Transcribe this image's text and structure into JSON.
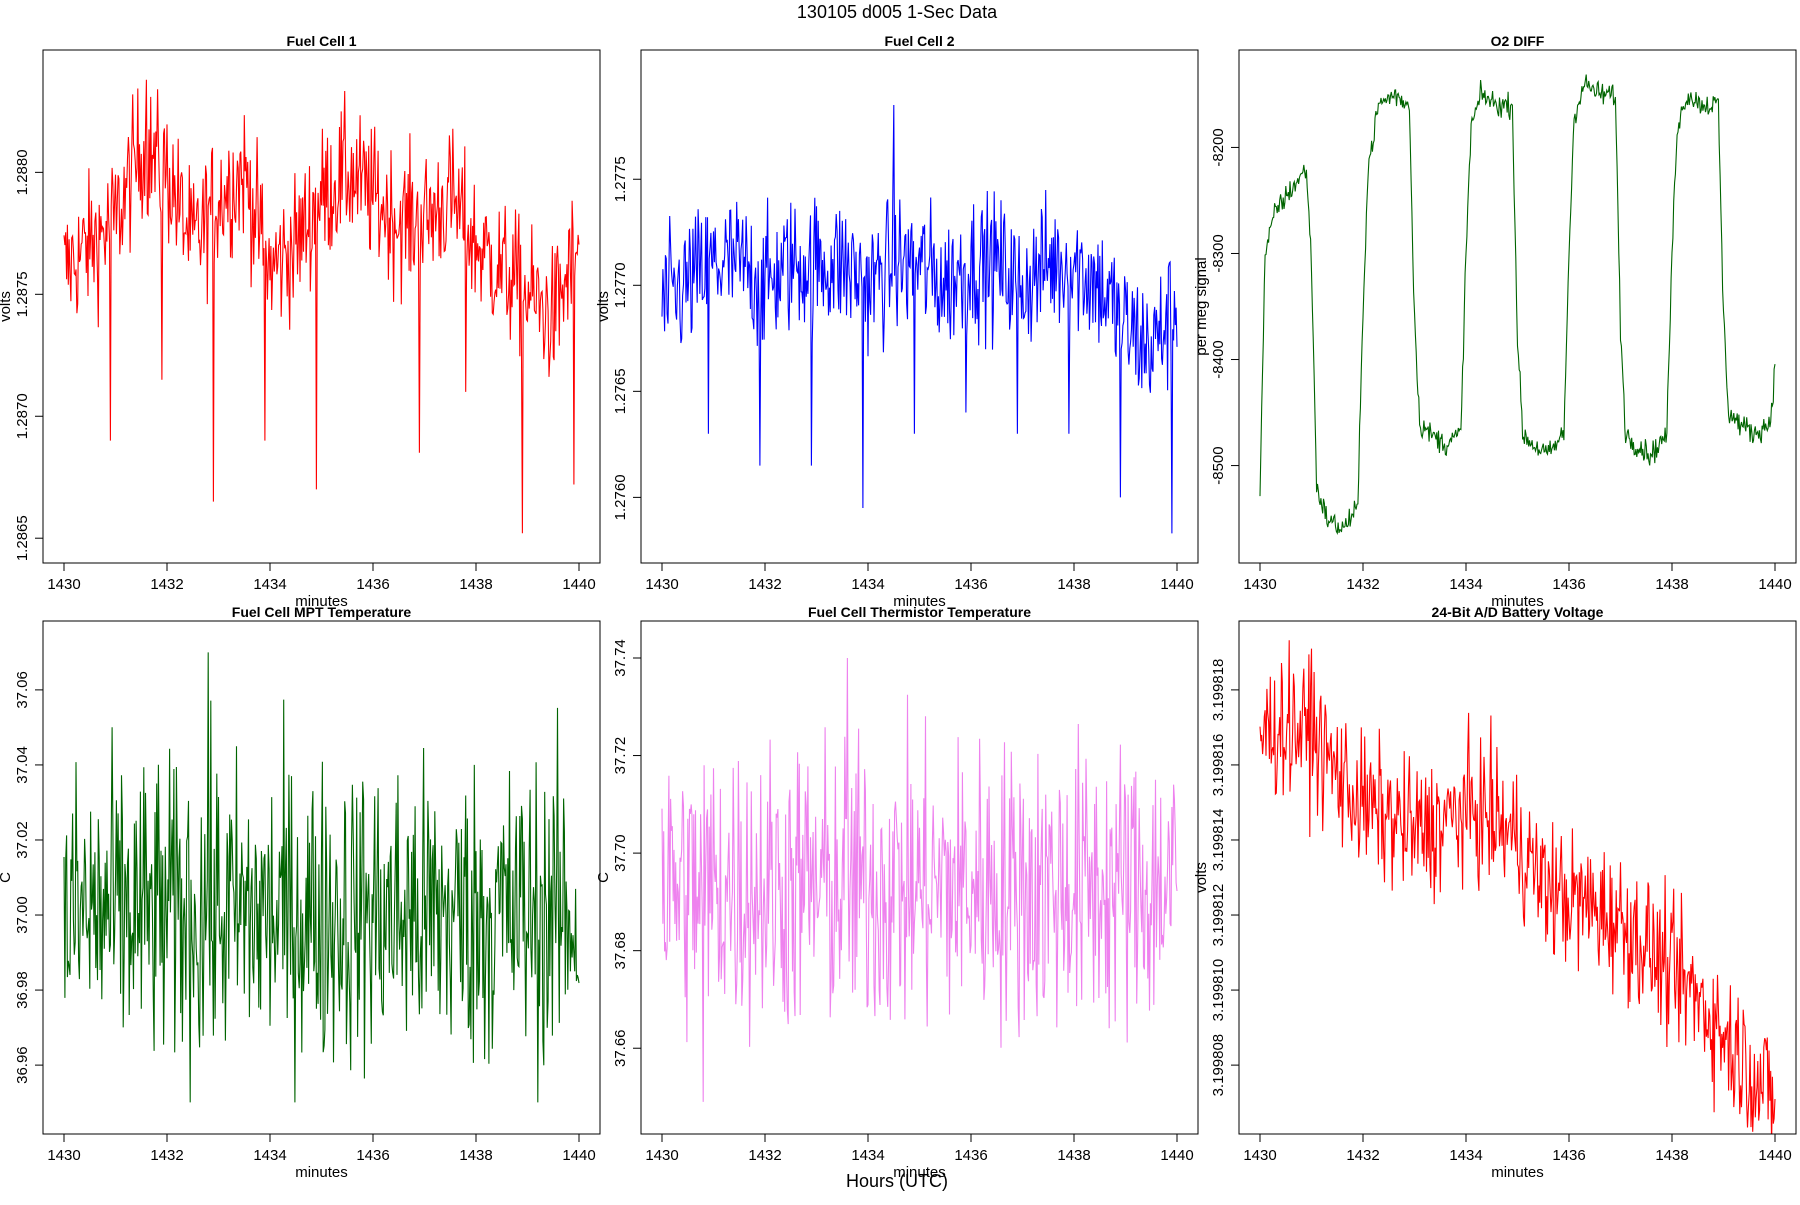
{
  "figure": {
    "title": "130105   d005   1-Sec Data",
    "xlabel": "Hours (UTC)"
  },
  "chart_data": [
    {
      "type": "line",
      "title": "Fuel Cell 1",
      "xlabel": "minutes",
      "ylabel": "volts",
      "color": "#ff0000",
      "xlim": [
        1430,
        1440
      ],
      "ylim": [
        1.28645,
        1.28845
      ],
      "xticks": [
        1430,
        1432,
        1434,
        1436,
        1438,
        1440
      ],
      "xtick_labels": [
        "1430",
        "1432",
        "1434",
        "1436",
        "1438",
        "1440"
      ],
      "yticks": [
        1.2865,
        1.287,
        1.2875,
        1.288
      ],
      "ytick_labels": [
        "1.2865",
        "1.2870",
        "1.2875",
        "1.2880"
      ],
      "series": [
        {
          "x": [
            1430.0,
            1430.5,
            1431.0,
            1431.5,
            1432.0,
            1432.5,
            1433.0,
            1433.5,
            1434.0,
            1434.5,
            1435.0,
            1435.5,
            1436.0,
            1436.5,
            1437.0,
            1437.5,
            1438.0,
            1438.5,
            1439.0,
            1439.5,
            1440.0
          ],
          "y": [
            1.2876,
            1.2877,
            1.2878,
            1.2881,
            1.288,
            1.2877,
            1.2879,
            1.288,
            1.2876,
            1.2877,
            1.2879,
            1.288,
            1.2879,
            1.2878,
            1.2878,
            1.2879,
            1.2877,
            1.2876,
            1.2875,
            1.2874,
            1.2877
          ],
          "spikes": [
            [
              1430.9,
              1.2869
            ],
            [
              1431.9,
              1.28715
            ],
            [
              1432.9,
              1.28665
            ],
            [
              1433.9,
              1.2869
            ],
            [
              1434.9,
              1.2867
            ],
            [
              1436.9,
              1.28685
            ],
            [
              1437.8,
              1.2871
            ],
            [
              1438.9,
              1.28652
            ],
            [
              1439.9,
              1.28672
            ]
          ],
          "max": [
            [
              1431.6,
              1.28838
            ]
          ]
        }
      ]
    },
    {
      "type": "line",
      "title": "Fuel Cell 2",
      "xlabel": "minutes",
      "ylabel": "volts",
      "color": "#0000ff",
      "xlim": [
        1430,
        1440
      ],
      "ylim": [
        1.27575,
        1.27805
      ],
      "xticks": [
        1430,
        1432,
        1434,
        1436,
        1438,
        1440
      ],
      "xtick_labels": [
        "1430",
        "1432",
        "1434",
        "1436",
        "1438",
        "1440"
      ],
      "yticks": [
        1.276,
        1.2765,
        1.277,
        1.2775
      ],
      "ytick_labels": [
        "1.2760",
        "1.2765",
        "1.2770",
        "1.2775"
      ],
      "series": [
        {
          "x": [
            1430.0,
            1430.5,
            1431.0,
            1431.5,
            1432.0,
            1432.5,
            1433.0,
            1433.5,
            1434.0,
            1434.5,
            1435.0,
            1435.5,
            1436.0,
            1436.5,
            1437.0,
            1437.5,
            1438.0,
            1438.5,
            1439.0,
            1439.5,
            1440.0
          ],
          "y": [
            1.2769,
            1.277,
            1.2771,
            1.2771,
            1.277,
            1.2771,
            1.2771,
            1.2771,
            1.277,
            1.2771,
            1.2771,
            1.277,
            1.2771,
            1.2771,
            1.277,
            1.2771,
            1.2771,
            1.277,
            1.2768,
            1.2767,
            1.2769
          ],
          "spikes": [
            [
              1430.9,
              1.2763
            ],
            [
              1431.9,
              1.27615
            ],
            [
              1432.9,
              1.27615
            ],
            [
              1433.9,
              1.27595
            ],
            [
              1434.9,
              1.2763
            ],
            [
              1435.9,
              1.2764
            ],
            [
              1436.9,
              1.2763
            ],
            [
              1437.9,
              1.2763
            ],
            [
              1438.9,
              1.276
            ],
            [
              1439.9,
              1.27583
            ]
          ],
          "max": [
            [
              1434.5,
              1.27785
            ]
          ]
        }
      ]
    },
    {
      "type": "line",
      "title": "O2 DIFF",
      "xlabel": "minutes",
      "ylabel": "per meg signal",
      "color": "#006400",
      "xlim": [
        1430,
        1440
      ],
      "ylim": [
        -8580,
        -8120
      ],
      "xticks": [
        1430,
        1432,
        1434,
        1436,
        1438,
        1440
      ],
      "xtick_labels": [
        "1430",
        "1432",
        "1434",
        "1436",
        "1438",
        "1440"
      ],
      "yticks": [
        -8500,
        -8400,
        -8300,
        -8200
      ],
      "ytick_labels": [
        "-8500",
        "-8400",
        "-8300",
        "-8200"
      ],
      "series": [
        {
          "x": [
            1430.0,
            1430.1,
            1430.3,
            1430.6,
            1430.9,
            1431.0,
            1431.1,
            1431.3,
            1431.6,
            1431.9,
            1432.0,
            1432.1,
            1432.3,
            1432.6,
            1432.9,
            1433.0,
            1433.1,
            1433.3,
            1433.6,
            1433.9,
            1434.0,
            1434.1,
            1434.3,
            1434.6,
            1434.9,
            1435.0,
            1435.1,
            1435.3,
            1435.6,
            1435.9,
            1436.0,
            1436.1,
            1436.3,
            1436.6,
            1436.9,
            1437.0,
            1437.1,
            1437.3,
            1437.6,
            1437.9,
            1438.0,
            1438.1,
            1438.3,
            1438.6,
            1438.9,
            1439.0,
            1439.1,
            1439.3,
            1439.6,
            1439.9,
            1440.0
          ],
          "y": [
            -8520,
            -8300,
            -8260,
            -8240,
            -8220,
            -8310,
            -8520,
            -8550,
            -8560,
            -8540,
            -8350,
            -8220,
            -8160,
            -8150,
            -8160,
            -8360,
            -8460,
            -8470,
            -8480,
            -8470,
            -8300,
            -8180,
            -8150,
            -8160,
            -8160,
            -8380,
            -8470,
            -8480,
            -8490,
            -8470,
            -8300,
            -8170,
            -8140,
            -8150,
            -8150,
            -8370,
            -8470,
            -8480,
            -8490,
            -8470,
            -8300,
            -8180,
            -8150,
            -8160,
            -8160,
            -8360,
            -8450,
            -8460,
            -8470,
            -8460,
            -8410
          ]
        }
      ]
    },
    {
      "type": "line",
      "title": "Fuel Cell MPT Temperature",
      "xlabel": "minutes",
      "ylabel": "C",
      "color": "#006400",
      "xlim": [
        1430,
        1440
      ],
      "ylim": [
        36.945,
        37.075
      ],
      "xticks": [
        1430,
        1432,
        1434,
        1436,
        1438,
        1440
      ],
      "xtick_labels": [
        "1430",
        "1432",
        "1434",
        "1436",
        "1438",
        "1440"
      ],
      "yticks": [
        36.96,
        36.98,
        37.0,
        37.02,
        37.04,
        37.06
      ],
      "ytick_labels": [
        "36.96",
        "36.98",
        "37.00",
        "37.02",
        "37.04",
        "37.06"
      ],
      "series": [
        {
          "x": [
            1430,
            1440
          ],
          "y": [
            37.0,
            37.0
          ],
          "range": [
            36.947,
            37.07
          ],
          "max": [
            [
              1432.8,
              37.07
            ]
          ]
        }
      ]
    },
    {
      "type": "line",
      "title": "Fuel Cell Thermistor Temperature",
      "xlabel": "minutes",
      "ylabel": "C",
      "color": "#ee82ee",
      "xlim": [
        1430,
        1440
      ],
      "ylim": [
        37.645,
        37.745
      ],
      "xticks": [
        1430,
        1432,
        1434,
        1436,
        1438,
        1440
      ],
      "xtick_labels": [
        "1430",
        "1432",
        "1434",
        "1436",
        "1438",
        "1440"
      ],
      "yticks": [
        37.66,
        37.68,
        37.7,
        37.72,
        37.74
      ],
      "ytick_labels": [
        "37.66",
        "37.68",
        "37.70",
        "37.72",
        "37.74"
      ],
      "series": [
        {
          "x": [
            1430,
            1440
          ],
          "y": [
            37.693,
            37.693
          ],
          "range": [
            37.649,
            37.74
          ],
          "max": [
            [
              1433.6,
              37.74
            ]
          ],
          "min": [
            [
              1430.8,
              37.649
            ]
          ]
        }
      ]
    },
    {
      "type": "line",
      "title": "24-Bit A/D Battery Voltage",
      "xlabel": "minutes",
      "ylabel": "volts",
      "color": "#ff0000",
      "xlim": [
        1430,
        1440
      ],
      "ylim": [
        3.1998065,
        3.1998195
      ],
      "xticks": [
        1430,
        1432,
        1434,
        1436,
        1438,
        1440
      ],
      "xtick_labels": [
        "1430",
        "1432",
        "1434",
        "1436",
        "1438",
        "1440"
      ],
      "yticks": [
        3.199808,
        3.19981,
        3.199812,
        3.199814,
        3.199816,
        3.199818
      ],
      "ytick_labels": [
        "3.199808",
        "3.199810",
        "3.199812",
        "3.199814",
        "3.199816",
        "3.199818"
      ],
      "series": [
        {
          "x": [
            1430.0,
            1430.5,
            1431.0,
            1431.5,
            1432.0,
            1432.5,
            1433.0,
            1433.5,
            1434.0,
            1434.5,
            1435.0,
            1435.5,
            1436.0,
            1436.5,
            1437.0,
            1437.5,
            1438.0,
            1438.5,
            1439.0,
            1439.5,
            1440.0
          ],
          "y": [
            3.1998168,
            3.1998171,
            3.1998168,
            3.1998158,
            3.1998149,
            3.1998146,
            3.1998142,
            3.1998144,
            3.1998148,
            3.1998146,
            3.199814,
            3.1998128,
            3.1998124,
            3.1998122,
            3.1998118,
            3.1998112,
            3.1998104,
            3.1998098,
            3.1998088,
            3.199808,
            3.199807
          ],
          "max": [
            [
              1431.0,
              3.1998191
            ]
          ],
          "min": [
            [
              1439.7,
              3.1998068
            ]
          ]
        }
      ]
    }
  ]
}
